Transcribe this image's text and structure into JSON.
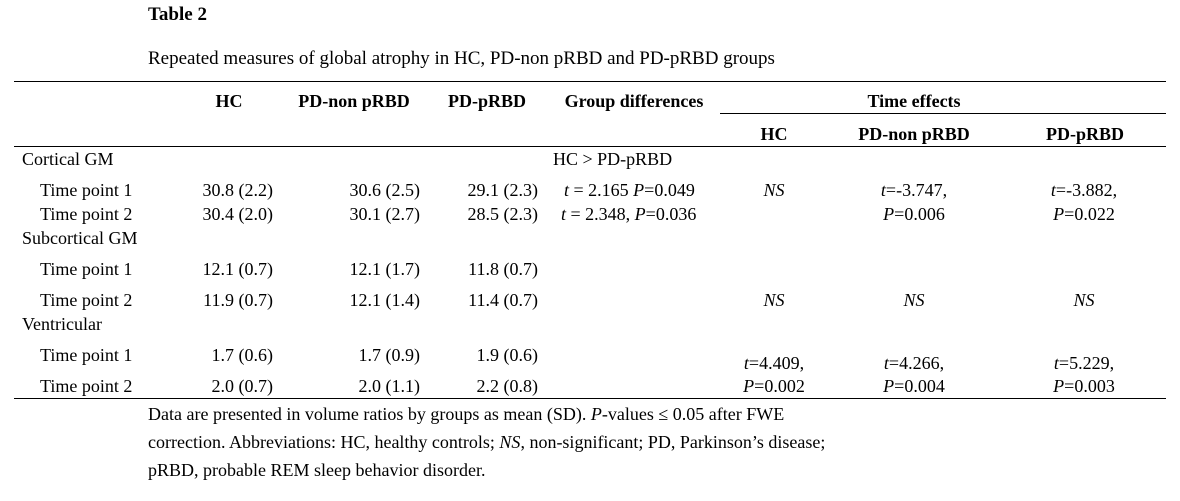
{
  "table": {
    "label": "Table 2",
    "caption": "Repeated measures of global atrophy in HC, PD-non pRBD and PD-pRBD groups",
    "headers": {
      "hc": "HC",
      "pd_non": "PD-non pRBD",
      "pd_prbd": "PD-pRBD",
      "group_diff": "Group differences",
      "time_effects": "Time effects",
      "te_hc": "HC",
      "te_pd_non": "PD-non pRBD",
      "te_pd_prbd": "PD-pRBD"
    },
    "sections": [
      {
        "name": "Cortical GM",
        "group_diff_summary": "HC > PD-pRBD",
        "rows": [
          {
            "label": "Time point 1",
            "hc": "30.8 (2.2)",
            "pd_non": "30.6 (2.5)",
            "pd_prbd": "29.1 (2.3)",
            "gd_t_sym": "t",
            "gd_t_rest": " = 2.165 ",
            "gd_p_sym": "P",
            "gd_p_rest": "=0.049"
          },
          {
            "label": "Time point 2",
            "hc": "30.4 (2.0)",
            "pd_non": "30.1 (2.7)",
            "pd_prbd": "28.5 (2.3)",
            "gd_t_sym": "t",
            "gd_t_rest": " = 2.348, ",
            "gd_p_sym": "P",
            "gd_p_rest": "=0.036"
          }
        ],
        "time_effects": {
          "hc_ns": "NS",
          "pd_non_t": "=-3.747,",
          "pd_non_p": "=0.006",
          "pd_prbd_t": "=-3.882,",
          "pd_prbd_p": "=0.022"
        }
      },
      {
        "name": "Subcortical GM",
        "rows": [
          {
            "label": "Time point 1",
            "hc": "12.1 (0.7)",
            "pd_non": "12.1 (1.7)",
            "pd_prbd": "11.8 (0.7)"
          },
          {
            "label": "Time point 2",
            "hc": "11.9 (0.7)",
            "pd_non": "12.1 (1.4)",
            "pd_prbd": "11.4 (0.7)"
          }
        ],
        "time_effects": {
          "hc": "NS",
          "pd_non": "NS",
          "pd_prbd": "NS"
        }
      },
      {
        "name": "Ventricular",
        "rows": [
          {
            "label": "Time point 1",
            "hc": "1.7 (0.6)",
            "pd_non": "1.7 (0.9)",
            "pd_prbd": "1.9 (0.6)"
          },
          {
            "label": "Time point 2",
            "hc": "2.0 (0.7)",
            "pd_non": "2.0 (1.1)",
            "pd_prbd": "2.2 (0.8)"
          }
        ],
        "time_effects": {
          "hc_t": "=4.409,",
          "hc_p": "=0.002",
          "pd_non_t": "=4.266,",
          "pd_non_p": "=0.004",
          "pd_prbd_t": "=5.229,",
          "pd_prbd_p": "=0.003"
        }
      }
    ],
    "symbols": {
      "t": "t",
      "P": "P",
      "NS": "NS"
    },
    "footnote": {
      "line1_a": "Data are presented in volume ratios by groups as mean (SD). ",
      "line1_p": "P",
      "line1_b": "-values ≤ 0.05 after FWE",
      "line2_a": "correction. Abbreviations: HC, healthy controls; ",
      "line2_ns": "NS",
      "line2_b": ", non-significant; PD, Parkinson’s disease;",
      "line3": "pRBD, probable REM sleep behavior disorder."
    }
  }
}
